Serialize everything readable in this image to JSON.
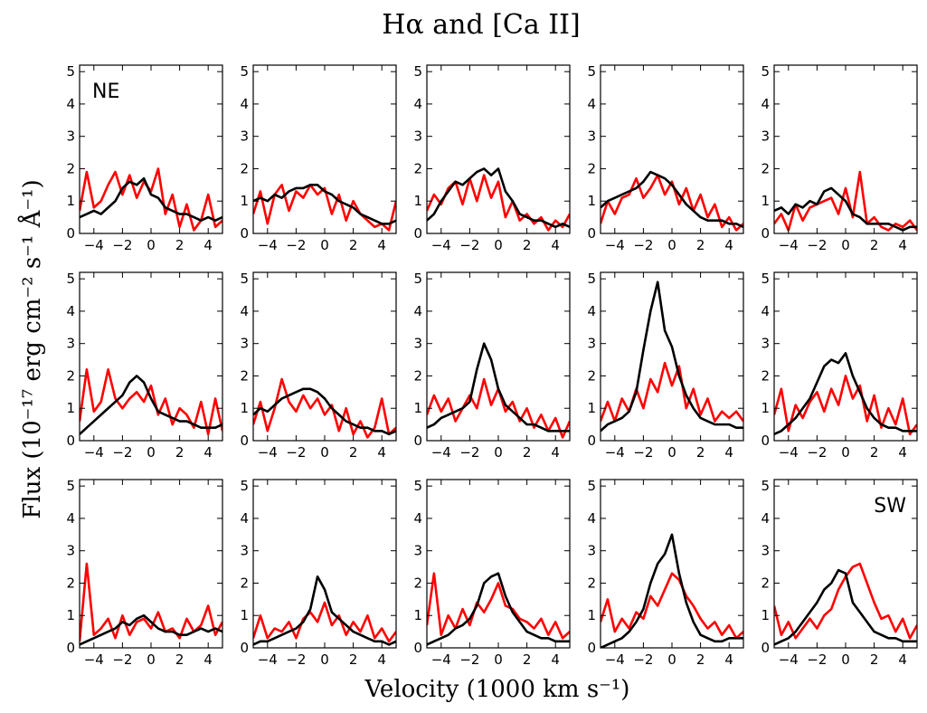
{
  "chart_data": {
    "type": "line",
    "title": "Hα and [Ca II]",
    "xlabel": "Velocity (1000 km s⁻¹)",
    "ylabel": "Flux (10⁻¹⁷ erg cm⁻² s⁻¹ Å⁻¹)",
    "xlim": [
      -5,
      5
    ],
    "ylim": [
      0,
      5.2
    ],
    "xticks": [
      -4,
      -2,
      0,
      2,
      4
    ],
    "xtick_labels": [
      "−4",
      "−2",
      "0",
      "2",
      "4"
    ],
    "yticks": [
      0,
      1,
      2,
      3,
      4,
      5
    ],
    "ytick_labels": [
      "0",
      "1",
      "2",
      "3",
      "4",
      "5"
    ],
    "series_names": [
      "Hα",
      "[Ca II]"
    ],
    "series_colors": [
      "#000000",
      "#ff0000"
    ],
    "x": [
      -5.0,
      -4.5,
      -4.0,
      -3.5,
      -3.0,
      -2.5,
      -2.0,
      -1.5,
      -1.0,
      -0.5,
      0.0,
      0.5,
      1.0,
      1.5,
      2.0,
      2.5,
      3.0,
      3.5,
      4.0,
      4.5,
      5.0
    ],
    "panels": [
      {
        "label": "NE",
        "black": [
          0.5,
          0.6,
          0.7,
          0.6,
          0.8,
          1.0,
          1.4,
          1.6,
          1.5,
          1.7,
          1.2,
          1.1,
          0.8,
          0.7,
          0.6,
          0.6,
          0.5,
          0.4,
          0.5,
          0.4,
          0.5
        ],
        "red": [
          0.7,
          1.9,
          0.8,
          1.0,
          1.5,
          1.9,
          1.2,
          1.8,
          1.1,
          1.6,
          1.3,
          2.0,
          0.6,
          1.2,
          0.2,
          0.9,
          0.1,
          0.4,
          1.2,
          0.2,
          0.4
        ]
      },
      {
        "label": "",
        "black": [
          1.0,
          1.1,
          1.0,
          1.2,
          1.1,
          1.3,
          1.4,
          1.4,
          1.5,
          1.5,
          1.3,
          1.2,
          1.0,
          0.9,
          0.8,
          0.6,
          0.5,
          0.4,
          0.3,
          0.3,
          0.4
        ],
        "red": [
          0.6,
          1.3,
          0.3,
          1.2,
          1.5,
          0.7,
          1.3,
          1.1,
          1.5,
          1.2,
          1.4,
          0.6,
          1.2,
          0.4,
          1.0,
          0.6,
          0.4,
          0.2,
          0.3,
          0.1,
          1.0
        ]
      },
      {
        "label": "",
        "black": [
          0.4,
          0.6,
          1.0,
          1.3,
          1.6,
          1.5,
          1.7,
          1.9,
          2.0,
          1.8,
          2.0,
          1.3,
          1.0,
          0.6,
          0.5,
          0.4,
          0.4,
          0.3,
          0.2,
          0.3,
          0.2
        ],
        "red": [
          0.7,
          1.2,
          0.9,
          1.4,
          1.6,
          0.9,
          1.7,
          1.0,
          1.8,
          1.1,
          1.6,
          0.5,
          1.0,
          0.4,
          0.6,
          0.3,
          0.5,
          0.1,
          0.4,
          0.2,
          0.6
        ]
      },
      {
        "label": "",
        "black": [
          0.8,
          1.0,
          1.1,
          1.2,
          1.3,
          1.4,
          1.6,
          1.9,
          1.8,
          1.7,
          1.5,
          1.2,
          0.9,
          0.7,
          0.5,
          0.4,
          0.4,
          0.4,
          0.3,
          0.3,
          0.2
        ],
        "red": [
          0.3,
          1.0,
          0.6,
          1.1,
          1.2,
          1.7,
          1.1,
          1.4,
          1.8,
          1.2,
          1.6,
          0.9,
          1.4,
          0.7,
          1.2,
          0.5,
          0.9,
          0.2,
          0.5,
          0.1,
          0.3
        ]
      },
      {
        "label": "",
        "black": [
          0.7,
          0.8,
          0.6,
          0.9,
          0.8,
          1.0,
          0.9,
          1.3,
          1.4,
          1.2,
          1.0,
          0.6,
          0.5,
          0.3,
          0.3,
          0.3,
          0.3,
          0.2,
          0.1,
          0.2,
          0.2
        ],
        "red": [
          0.3,
          0.6,
          0.1,
          0.9,
          0.4,
          0.8,
          0.9,
          1.0,
          1.1,
          0.6,
          1.4,
          0.5,
          1.9,
          0.3,
          0.5,
          0.2,
          0.1,
          0.3,
          0.2,
          0.4,
          0.1
        ]
      },
      {
        "label": "",
        "black": [
          0.2,
          0.4,
          0.6,
          0.8,
          1.0,
          1.2,
          1.4,
          1.8,
          2.0,
          1.8,
          1.3,
          0.9,
          0.8,
          0.7,
          0.6,
          0.6,
          0.5,
          0.4,
          0.4,
          0.4,
          0.5
        ],
        "red": [
          0.6,
          2.2,
          0.9,
          1.2,
          2.2,
          1.3,
          1.0,
          1.3,
          1.5,
          1.2,
          1.7,
          0.8,
          1.3,
          0.5,
          1.0,
          0.8,
          0.4,
          1.2,
          0.2,
          1.3,
          0.3
        ]
      },
      {
        "label": "",
        "black": [
          0.8,
          1.0,
          0.9,
          1.1,
          1.3,
          1.4,
          1.5,
          1.6,
          1.6,
          1.5,
          1.3,
          1.0,
          0.8,
          0.6,
          0.5,
          0.4,
          0.4,
          0.3,
          0.3,
          0.2,
          0.3
        ],
        "red": [
          0.5,
          1.2,
          0.3,
          1.0,
          1.9,
          1.2,
          0.9,
          1.4,
          1.0,
          1.3,
          0.8,
          1.1,
          0.3,
          1.0,
          0.2,
          0.6,
          0.1,
          0.4,
          1.3,
          0.2,
          0.4
        ]
      },
      {
        "label": "",
        "black": [
          0.4,
          0.5,
          0.7,
          0.8,
          0.9,
          1.0,
          1.2,
          2.2,
          3.0,
          2.5,
          1.6,
          1.1,
          0.9,
          0.7,
          0.5,
          0.5,
          0.4,
          0.3,
          0.3,
          0.3,
          0.3
        ],
        "red": [
          0.8,
          1.4,
          0.9,
          1.3,
          0.6,
          1.0,
          1.4,
          1.0,
          1.9,
          1.1,
          1.6,
          0.9,
          1.2,
          0.6,
          1.0,
          0.4,
          0.8,
          0.3,
          0.7,
          0.1,
          0.6
        ]
      },
      {
        "label": "",
        "black": [
          0.3,
          0.5,
          0.6,
          0.7,
          0.9,
          1.5,
          2.8,
          4.0,
          4.9,
          3.4,
          2.9,
          2.0,
          1.4,
          1.0,
          0.7,
          0.6,
          0.5,
          0.5,
          0.5,
          0.4,
          0.4
        ],
        "red": [
          0.6,
          1.2,
          0.6,
          1.3,
          0.9,
          1.6,
          1.0,
          1.9,
          1.5,
          2.4,
          1.7,
          2.3,
          1.0,
          1.6,
          0.8,
          1.3,
          0.6,
          0.9,
          0.7,
          0.9,
          0.6
        ]
      },
      {
        "label": "",
        "black": [
          0.2,
          0.3,
          0.5,
          0.7,
          1.0,
          1.3,
          1.8,
          2.3,
          2.5,
          2.4,
          2.7,
          2.0,
          1.5,
          1.0,
          0.7,
          0.5,
          0.4,
          0.4,
          0.3,
          0.3,
          0.3
        ],
        "red": [
          0.8,
          1.6,
          0.3,
          1.1,
          0.7,
          1.2,
          1.5,
          0.9,
          1.6,
          1.1,
          2.0,
          1.3,
          1.7,
          0.6,
          1.4,
          0.4,
          1.0,
          0.5,
          1.3,
          0.2,
          0.5
        ]
      },
      {
        "label": "",
        "black": [
          0.1,
          0.2,
          0.3,
          0.4,
          0.5,
          0.6,
          0.8,
          0.7,
          0.9,
          1.0,
          0.8,
          0.6,
          0.5,
          0.5,
          0.4,
          0.4,
          0.5,
          0.6,
          0.5,
          0.6,
          0.5
        ],
        "red": [
          0.2,
          2.6,
          0.4,
          0.6,
          0.9,
          0.3,
          1.0,
          0.4,
          0.8,
          0.9,
          0.6,
          1.1,
          0.5,
          0.6,
          0.3,
          0.9,
          0.5,
          0.7,
          1.3,
          0.4,
          0.8
        ]
      },
      {
        "label": "",
        "black": [
          0.1,
          0.2,
          0.2,
          0.3,
          0.4,
          0.5,
          0.6,
          0.8,
          1.2,
          2.2,
          1.8,
          1.1,
          0.9,
          0.7,
          0.5,
          0.4,
          0.3,
          0.2,
          0.2,
          0.1,
          0.2
        ],
        "red": [
          0.3,
          1.0,
          0.3,
          0.6,
          0.5,
          0.8,
          0.3,
          0.9,
          1.1,
          0.8,
          1.4,
          0.7,
          1.0,
          0.4,
          0.8,
          0.5,
          1.0,
          0.3,
          0.6,
          0.2,
          0.5
        ]
      },
      {
        "label": "",
        "black": [
          0.1,
          0.2,
          0.3,
          0.4,
          0.6,
          0.7,
          0.9,
          1.3,
          2.0,
          2.2,
          2.3,
          1.6,
          1.1,
          0.8,
          0.5,
          0.4,
          0.3,
          0.3,
          0.2,
          0.2,
          0.2
        ],
        "red": [
          0.7,
          2.3,
          0.4,
          1.0,
          0.6,
          1.2,
          0.7,
          1.4,
          1.1,
          1.5,
          2.0,
          1.3,
          1.2,
          0.9,
          0.8,
          0.6,
          0.9,
          0.4,
          0.8,
          0.3,
          0.5
        ]
      },
      {
        "label": "",
        "black": [
          0.0,
          0.1,
          0.2,
          0.3,
          0.5,
          0.8,
          1.2,
          2.0,
          2.6,
          2.9,
          3.5,
          2.3,
          1.4,
          0.8,
          0.4,
          0.3,
          0.2,
          0.2,
          0.3,
          0.3,
          0.3
        ],
        "red": [
          0.8,
          1.5,
          0.5,
          0.9,
          0.6,
          1.1,
          0.9,
          1.6,
          1.3,
          1.8,
          2.3,
          2.1,
          1.6,
          1.3,
          0.9,
          0.6,
          0.8,
          0.4,
          0.7,
          0.3,
          0.5
        ]
      },
      {
        "label": "SW",
        "black": [
          0.1,
          0.2,
          0.3,
          0.5,
          0.8,
          1.1,
          1.4,
          1.8,
          2.0,
          2.4,
          2.3,
          1.4,
          1.1,
          0.8,
          0.5,
          0.4,
          0.3,
          0.3,
          0.2,
          0.2,
          0.2
        ],
        "red": [
          1.3,
          0.4,
          0.8,
          0.3,
          0.6,
          0.9,
          0.6,
          1.0,
          1.2,
          1.8,
          2.2,
          2.5,
          2.6,
          2.0,
          1.4,
          0.9,
          1.0,
          0.5,
          0.9,
          0.3,
          0.7
        ]
      }
    ]
  }
}
